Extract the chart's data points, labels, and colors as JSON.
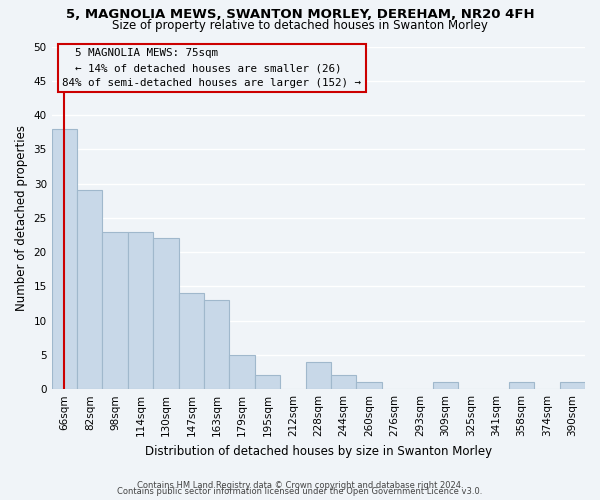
{
  "title1": "5, MAGNOLIA MEWS, SWANTON MORLEY, DEREHAM, NR20 4FH",
  "title2": "Size of property relative to detached houses in Swanton Morley",
  "xlabel": "Distribution of detached houses by size in Swanton Morley",
  "ylabel": "Number of detached properties",
  "bar_labels": [
    "66sqm",
    "82sqm",
    "98sqm",
    "114sqm",
    "130sqm",
    "147sqm",
    "163sqm",
    "179sqm",
    "195sqm",
    "212sqm",
    "228sqm",
    "244sqm",
    "260sqm",
    "276sqm",
    "293sqm",
    "309sqm",
    "325sqm",
    "341sqm",
    "358sqm",
    "374sqm",
    "390sqm"
  ],
  "bar_values": [
    38,
    29,
    23,
    23,
    22,
    14,
    13,
    5,
    2,
    0,
    4,
    2,
    1,
    0,
    0,
    1,
    0,
    0,
    1,
    0,
    1
  ],
  "bar_color": "#c8d8e8",
  "bar_edge_color": "#a0b8cc",
  "bg_color": "#f0f4f8",
  "grid_color": "#ffffff",
  "vline_color": "#cc0000",
  "annotation_title": "5 MAGNOLIA MEWS: 75sqm",
  "annotation_line1": "← 14% of detached houses are smaller (26)",
  "annotation_line2": "84% of semi-detached houses are larger (152) →",
  "annotation_box_color": "#cc0000",
  "ylim": [
    0,
    50
  ],
  "yticks": [
    0,
    5,
    10,
    15,
    20,
    25,
    30,
    35,
    40,
    45,
    50
  ],
  "footer1": "Contains HM Land Registry data © Crown copyright and database right 2024.",
  "footer2": "Contains public sector information licensed under the Open Government Licence v3.0."
}
